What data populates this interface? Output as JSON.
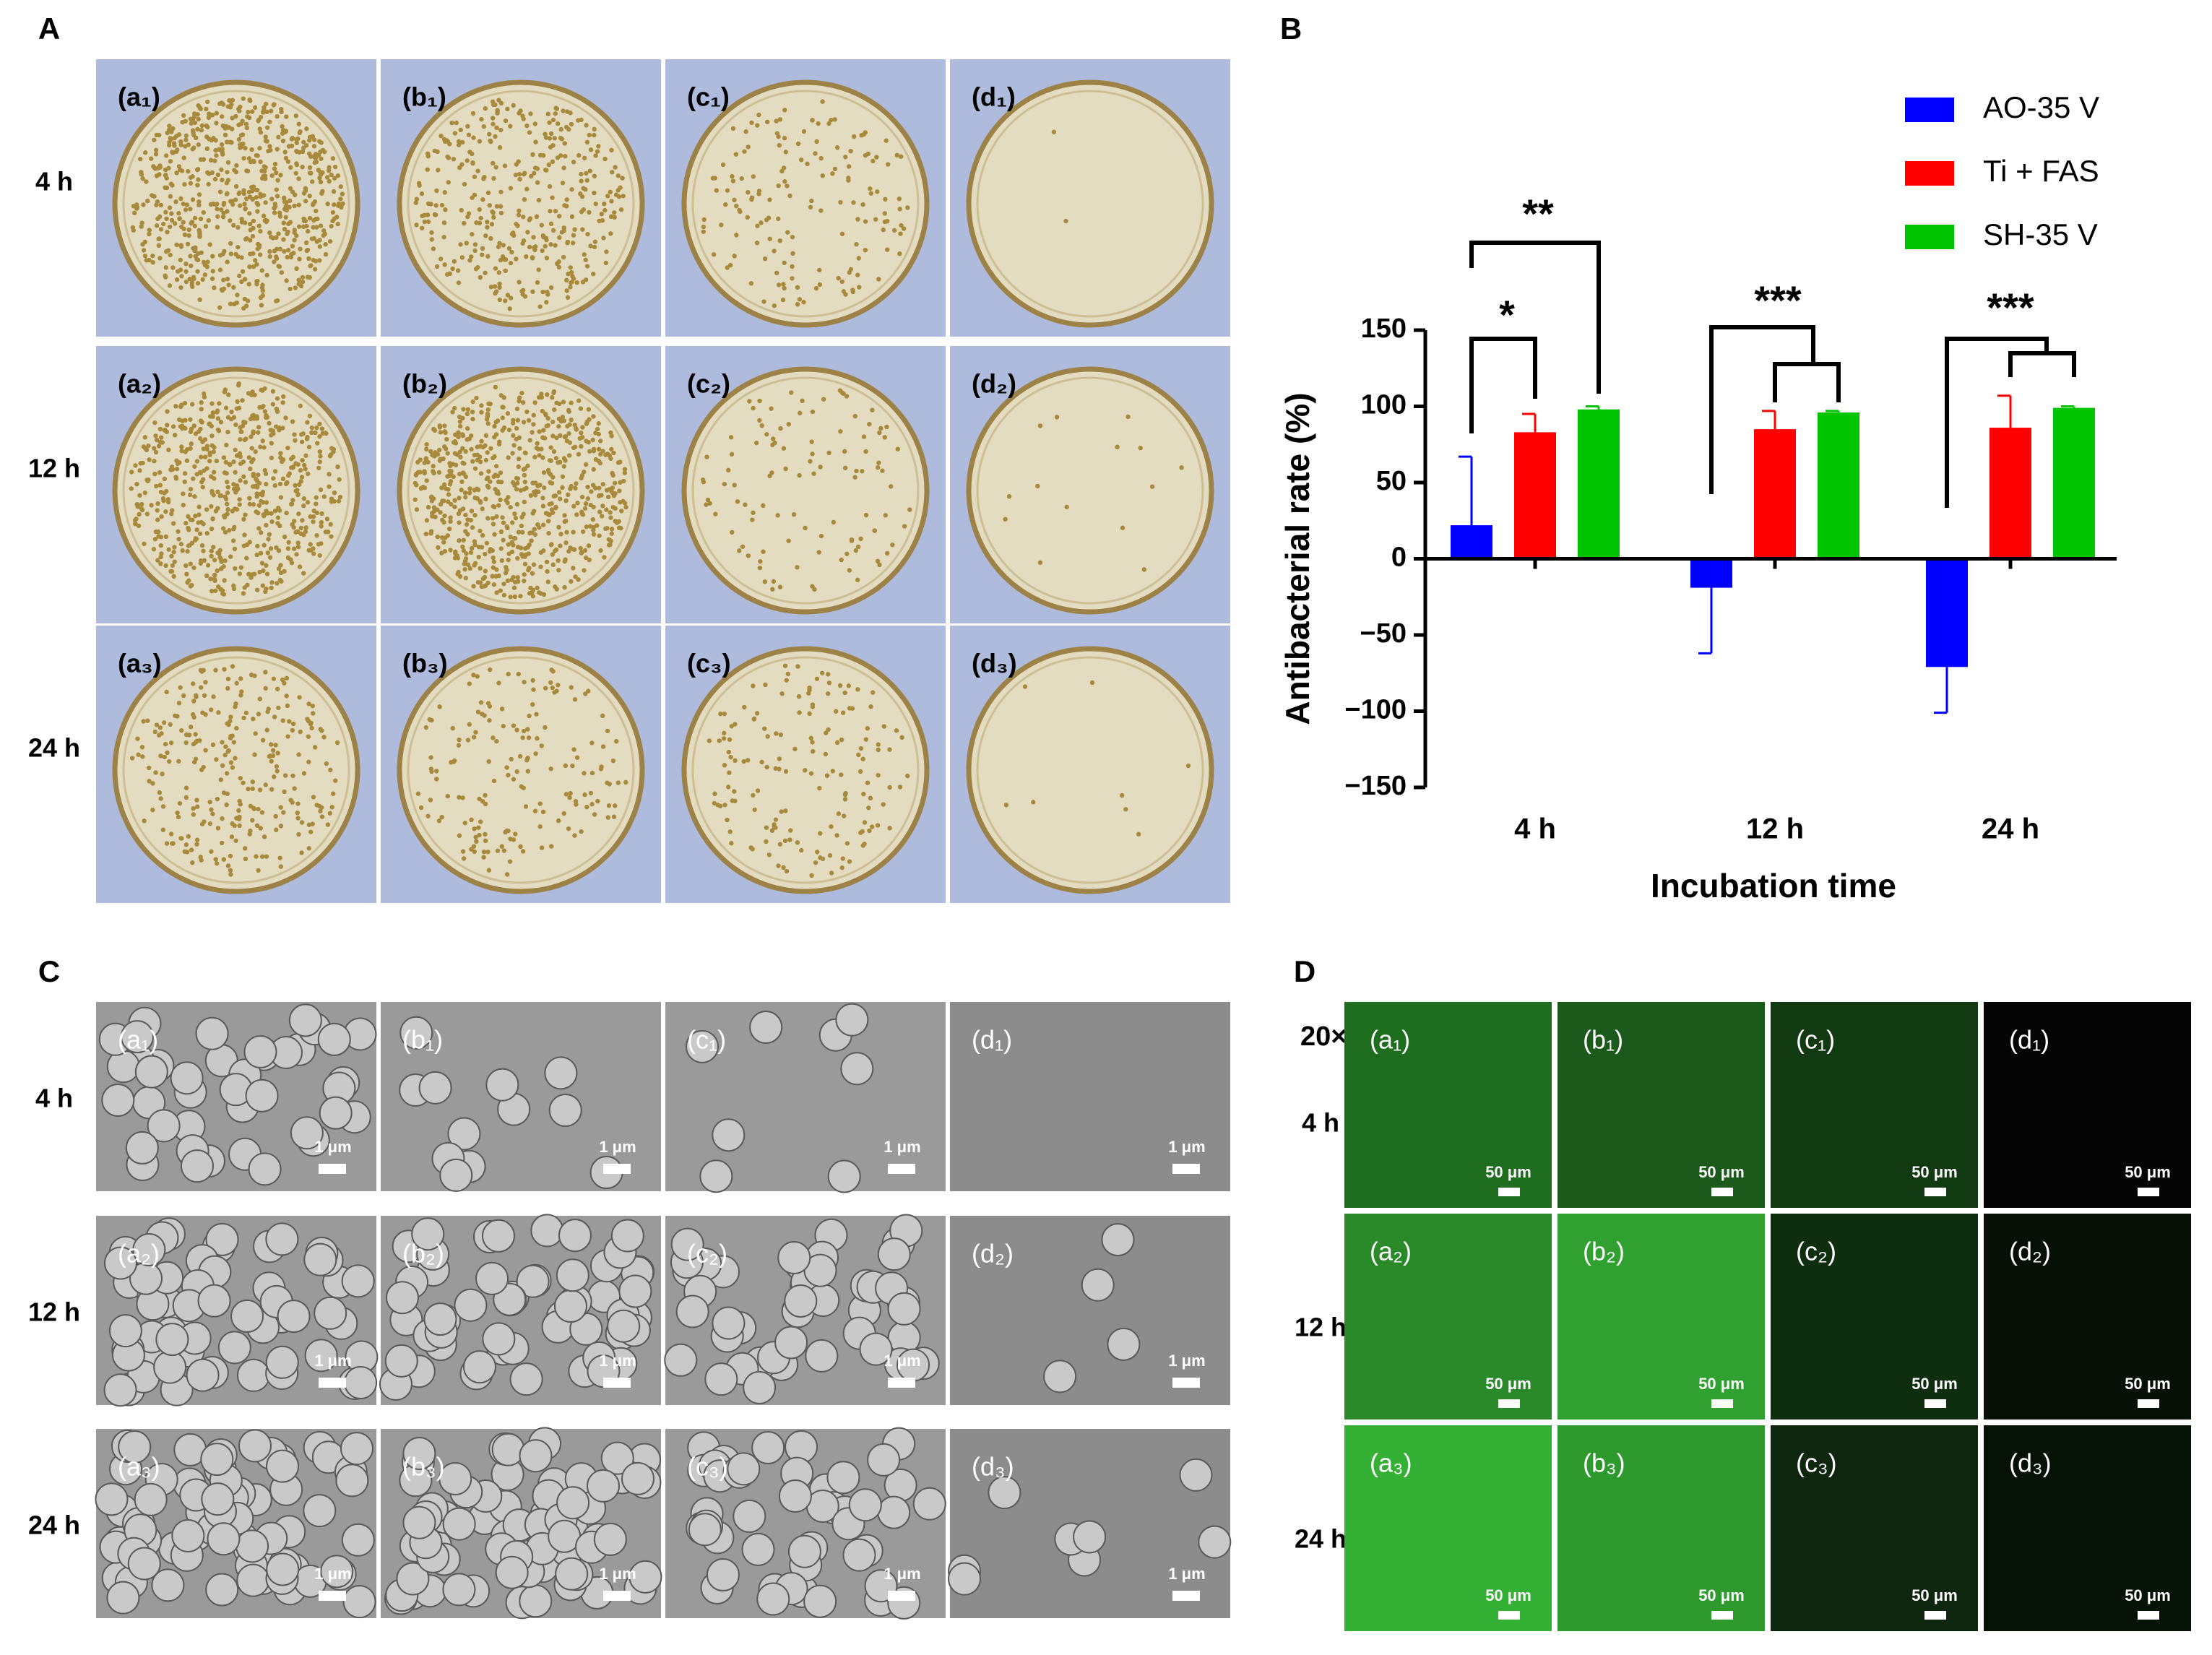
{
  "panel_labels": [
    "A",
    "B",
    "C",
    "D"
  ],
  "panel_a": {
    "rows": [
      "4 h",
      "12 h",
      "24 h"
    ],
    "labels": [
      [
        "(a₁)",
        "(b₁)",
        "(c₁)",
        "(d₁)"
      ],
      [
        "(a₂)",
        "(b₂)",
        "(c₂)",
        "(d₂)"
      ],
      [
        "(a₃)",
        "(b₃)",
        "(c₃)",
        "(d₃)"
      ]
    ]
  },
  "chart_data": {
    "type": "bar",
    "categories": [
      "4 h",
      "12 h",
      "24 h"
    ],
    "series": [
      {
        "name": "AO-35 V",
        "color": "#0000ff",
        "values": [
          22,
          -19,
          -71
        ],
        "errors": [
          45,
          43,
          30
        ]
      },
      {
        "name": "Ti + FAS",
        "color": "#ff0000",
        "values": [
          83,
          85,
          86
        ],
        "errors": [
          12,
          12,
          21
        ]
      },
      {
        "name": "SH-35 V",
        "color": "#00c400",
        "values": [
          98,
          96,
          99
        ],
        "errors": [
          2,
          1,
          1
        ]
      }
    ],
    "ylim": [
      -150,
      150
    ],
    "yticks": [
      {
        "value": -150,
        "label": "−150"
      },
      {
        "value": -100,
        "label": "−100"
      },
      {
        "value": -50,
        "label": "−50"
      },
      0,
      50,
      100,
      150
    ],
    "ylabel": "Antibacterial rate (%)",
    "xlabel": "Incubation time",
    "legend": "top-right",
    "annotations": [
      "**",
      "*",
      "***",
      "***"
    ]
  },
  "panel_c": {
    "rows": [
      "4 h",
      "12 h",
      "24 h"
    ],
    "labels": [
      [
        "(a₁)",
        "(b₁)",
        "(c₁)",
        "(d₁)"
      ],
      [
        "(a₂)",
        "(b₂)",
        "(c₂)",
        "(d₂)"
      ],
      [
        "(a₃)",
        "(b₃)",
        "(c₃)",
        "(d₃)"
      ]
    ],
    "scale_bar": "1 μm"
  },
  "panel_d": {
    "magnification": "20×",
    "rows": [
      "4 h",
      "12 h",
      "24 h"
    ],
    "labels": [
      [
        "(a₁)",
        "(b₁)",
        "(c₁)",
        "(d₁)"
      ],
      [
        "(a₂)",
        "(b₂)",
        "(c₂)",
        "(d₂)"
      ],
      [
        "(a₃)",
        "(b₃)",
        "(c₃)",
        "(d₃)"
      ]
    ],
    "scale_bar": "50 μm"
  }
}
